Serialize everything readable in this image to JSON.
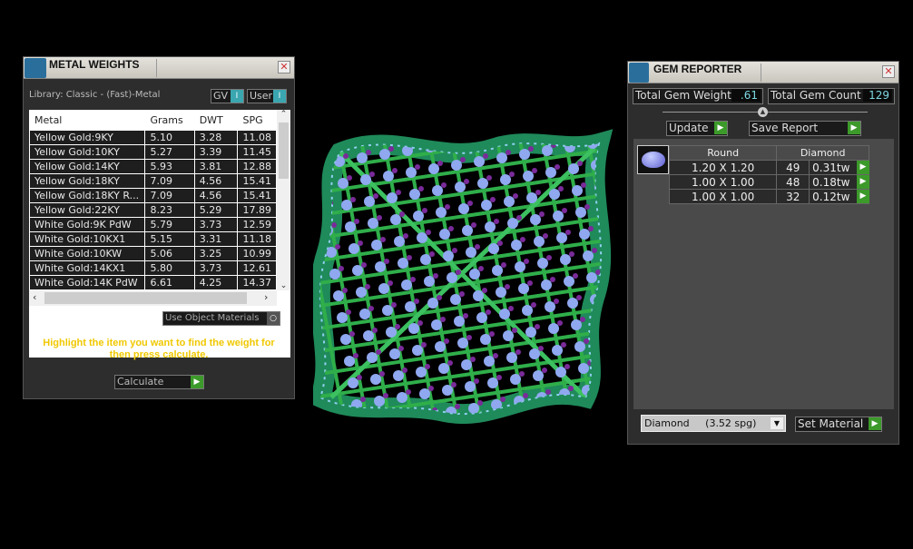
{
  "metal_panel": {
    "title": "METAL WEIGHTS",
    "library": "Library: Classic - (Fast)-Metal",
    "toggles": [
      {
        "label": "GV",
        "value": "I"
      },
      {
        "label": "User",
        "value": "I"
      }
    ],
    "columns": [
      "Metal",
      "Grams",
      "DWT",
      "SPG"
    ],
    "rows": [
      [
        "Yellow Gold:9KY",
        "5.10",
        "3.28",
        "11.08"
      ],
      [
        "Yellow Gold:10KY",
        "5.27",
        "3.39",
        "11.45"
      ],
      [
        "Yellow Gold:14KY",
        "5.93",
        "3.81",
        "12.88"
      ],
      [
        "Yellow Gold:18KY",
        "7.09",
        "4.56",
        "15.41"
      ],
      [
        "Yellow Gold:18KY R...",
        "7.09",
        "4.56",
        "15.41"
      ],
      [
        "Yellow Gold:22KY",
        "8.23",
        "5.29",
        "17.89"
      ],
      [
        "White Gold:9K PdW",
        "5.79",
        "3.73",
        "12.59"
      ],
      [
        "White Gold:10KX1",
        "5.15",
        "3.31",
        "11.18"
      ],
      [
        "White Gold:10KW",
        "5.06",
        "3.25",
        "10.99"
      ],
      [
        "White Gold:14KX1",
        "5.80",
        "3.73",
        "12.61"
      ],
      [
        "White Gold:14K PdW",
        "6.61",
        "4.25",
        "14.37"
      ]
    ],
    "use_object_materials": "Use Object Materials",
    "hint": "Highlight the item you want to find the weight for then press calculate.",
    "calculate": "Calculate"
  },
  "gem_panel": {
    "title": "GEM REPORTER",
    "total_weight_label": "Total Gem Weight",
    "total_weight": ".61",
    "total_count_label": "Total Gem Count",
    "total_count": "129",
    "update": "Update",
    "save_report": "Save Report",
    "shape": "Round",
    "material": "Diamond",
    "rows": [
      [
        "1.20 X 1.20",
        "49",
        "0.31tw"
      ],
      [
        "1.00 X 1.00",
        "48",
        "0.18tw"
      ],
      [
        "1.00 X 1.00",
        "32",
        "0.12tw"
      ]
    ],
    "material_select": "Diamond     (3.52 spg)",
    "set_material": "Set Material"
  },
  "colors": {
    "accent_green": "#3c9a2a",
    "hint_yellow": "#f0c800",
    "metal_green": "#1f8a5a",
    "gem_blue": "#8fa8f0",
    "gem_purple": "#7a2a9a"
  }
}
